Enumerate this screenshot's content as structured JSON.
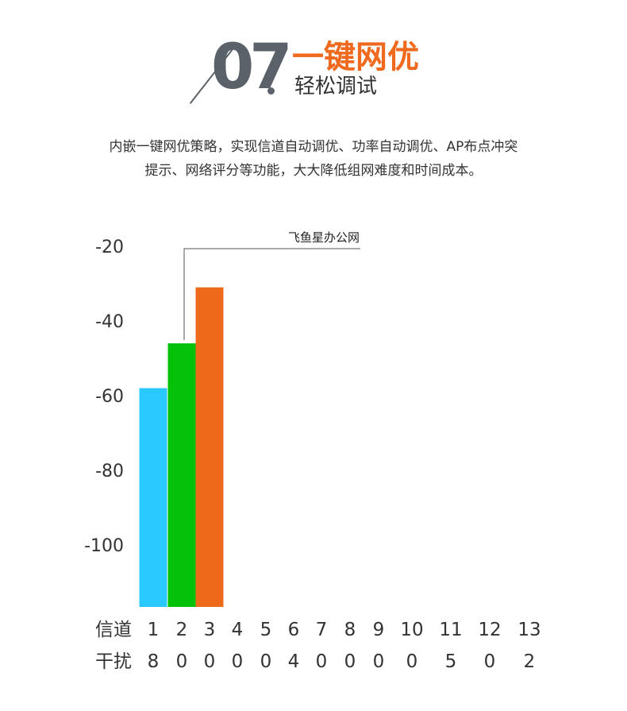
{
  "header": {
    "number": "07",
    "title": "一键网优",
    "subtitle": "轻松调试"
  },
  "description": {
    "line1": "内嵌一键网优策略，实现信道自动调优、功率自动调优、AP布点冲突",
    "line2": "提示、网络评分等功能，大大降低组网难度和时间成本。"
  },
  "colors": {
    "accent": "#ef6a1e",
    "number": "#5b6168",
    "bar_cyan": "#29c9ff",
    "bar_green": "#05c10a",
    "bar_orange": "#ed6a1a"
  },
  "chart_data": {
    "type": "bar",
    "title": "",
    "annotation": "飞鱼星办公网",
    "y_ticks": [
      -20,
      -40,
      -60,
      -80,
      -100
    ],
    "ylim": [
      -116,
      -20
    ],
    "row_labels": {
      "channel": "信道",
      "interference": "干扰"
    },
    "channels": [
      "1",
      "2",
      "3",
      "4",
      "5",
      "6",
      "7",
      "8",
      "9",
      "10",
      "11",
      "12",
      "13"
    ],
    "interference": [
      "8",
      "0",
      "0",
      "0",
      "0",
      "4",
      "0",
      "0",
      "0",
      "0",
      "5",
      "0",
      "2"
    ],
    "bars": [
      {
        "channel": "1",
        "value": -58,
        "color": "#29c9ff"
      },
      {
        "channel": "2",
        "value": -46,
        "color": "#05c10a"
      },
      {
        "channel": "3",
        "value": -31,
        "color": "#ed6a1a"
      }
    ],
    "annotated_channel": "2",
    "grid": false,
    "legend": "none"
  }
}
